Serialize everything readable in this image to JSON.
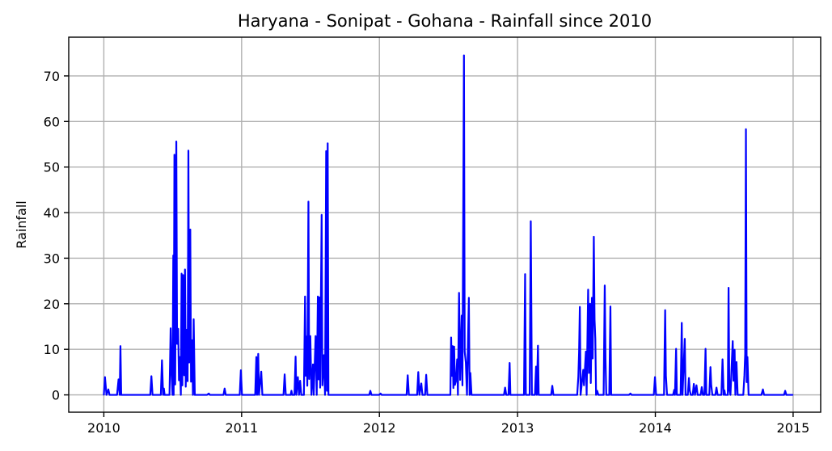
{
  "chart_data": {
    "type": "line",
    "title": "Haryana - Sonipat - Gohana - Rainfall since 2010",
    "xlabel": "",
    "ylabel": "Rainfall",
    "xlim": [
      "2009-09-30",
      "2015-03-15"
    ],
    "ylim": [
      -3.8,
      78.5
    ],
    "grid": true,
    "x_ticks": [
      {
        "date": "2010-01-01",
        "label": "2010"
      },
      {
        "date": "2011-01-01",
        "label": "2011"
      },
      {
        "date": "2012-01-01",
        "label": "2012"
      },
      {
        "date": "2013-01-01",
        "label": "2013"
      },
      {
        "date": "2014-01-01",
        "label": "2014"
      },
      {
        "date": "2015-01-01",
        "label": "2015"
      }
    ],
    "y_ticks": [
      0,
      10,
      20,
      30,
      40,
      50,
      60,
      70
    ],
    "series": [
      {
        "color": "#0000ff",
        "points": [
          [
            "2010-01-01",
            0
          ],
          [
            "2010-01-04",
            3.9
          ],
          [
            "2010-01-08",
            0
          ],
          [
            "2010-01-13",
            1.2
          ],
          [
            "2010-01-16",
            0
          ],
          [
            "2010-02-05",
            0
          ],
          [
            "2010-02-09",
            3.4
          ],
          [
            "2010-02-12",
            0
          ],
          [
            "2010-02-14",
            10.7
          ],
          [
            "2010-02-16",
            0
          ],
          [
            "2010-05-04",
            0
          ],
          [
            "2010-05-07",
            4.1
          ],
          [
            "2010-05-10",
            0
          ],
          [
            "2010-06-01",
            0
          ],
          [
            "2010-06-04",
            7.6
          ],
          [
            "2010-06-07",
            0
          ],
          [
            "2010-06-09",
            1.4
          ],
          [
            "2010-06-11",
            0
          ],
          [
            "2010-06-24",
            0
          ],
          [
            "2010-06-27",
            14.6
          ],
          [
            "2010-06-29",
            5.4
          ],
          [
            "2010-07-02",
            0
          ],
          [
            "2010-07-04",
            30.6
          ],
          [
            "2010-07-05",
            0
          ],
          [
            "2010-07-07",
            52.7
          ],
          [
            "2010-07-09",
            2.3
          ],
          [
            "2010-07-12",
            55.6
          ],
          [
            "2010-07-14",
            11.2
          ],
          [
            "2010-07-17",
            14.5
          ],
          [
            "2010-07-19",
            3.2
          ],
          [
            "2010-07-21",
            8.3
          ],
          [
            "2010-07-24",
            0
          ],
          [
            "2010-07-26",
            26.6
          ],
          [
            "2010-07-28",
            2.1
          ],
          [
            "2010-07-30",
            26.3
          ],
          [
            "2010-08-02",
            4.3
          ],
          [
            "2010-08-04",
            27.5
          ],
          [
            "2010-08-06",
            1.8
          ],
          [
            "2010-08-09",
            14.3
          ],
          [
            "2010-08-11",
            3.0
          ],
          [
            "2010-08-13",
            53.6
          ],
          [
            "2010-08-15",
            7.1
          ],
          [
            "2010-08-18",
            36.3
          ],
          [
            "2010-08-20",
            2.9
          ],
          [
            "2010-08-23",
            12.0
          ],
          [
            "2010-08-25",
            0
          ],
          [
            "2010-08-27",
            16.6
          ],
          [
            "2010-08-30",
            0
          ],
          [
            "2010-10-01",
            0
          ],
          [
            "2010-10-06",
            0.3
          ],
          [
            "2010-10-09",
            0
          ],
          [
            "2010-11-14",
            0
          ],
          [
            "2010-11-17",
            1.4
          ],
          [
            "2010-11-20",
            0
          ],
          [
            "2010-12-27",
            0
          ],
          [
            "2010-12-30",
            5.4
          ],
          [
            "2011-01-02",
            0
          ],
          [
            "2011-02-06",
            0
          ],
          [
            "2011-02-09",
            8.3
          ],
          [
            "2011-02-11",
            0
          ],
          [
            "2011-02-14",
            9.0
          ],
          [
            "2011-02-16",
            0
          ],
          [
            "2011-02-22",
            5.1
          ],
          [
            "2011-02-25",
            0
          ],
          [
            "2011-04-22",
            0
          ],
          [
            "2011-04-25",
            4.5
          ],
          [
            "2011-04-28",
            0
          ],
          [
            "2011-05-11",
            0
          ],
          [
            "2011-05-13",
            0.9
          ],
          [
            "2011-05-15",
            0
          ],
          [
            "2011-05-21",
            0
          ],
          [
            "2011-05-24",
            8.4
          ],
          [
            "2011-05-26",
            0
          ],
          [
            "2011-05-30",
            3.9
          ],
          [
            "2011-06-02",
            0
          ],
          [
            "2011-06-05",
            3.1
          ],
          [
            "2011-06-08",
            0
          ],
          [
            "2011-06-15",
            0
          ],
          [
            "2011-06-18",
            21.6
          ],
          [
            "2011-06-20",
            4.2
          ],
          [
            "2011-06-22",
            12.8
          ],
          [
            "2011-06-24",
            2.0
          ],
          [
            "2011-06-27",
            42.4
          ],
          [
            "2011-06-29",
            3.5
          ],
          [
            "2011-07-02",
            12.9
          ],
          [
            "2011-07-05",
            0
          ],
          [
            "2011-07-09",
            6.7
          ],
          [
            "2011-07-11",
            0
          ],
          [
            "2011-07-16",
            12.9
          ],
          [
            "2011-07-19",
            0
          ],
          [
            "2011-07-22",
            21.6
          ],
          [
            "2011-07-24",
            3.4
          ],
          [
            "2011-07-26",
            21.4
          ],
          [
            "2011-07-28",
            1.6
          ],
          [
            "2011-08-01",
            39.5
          ],
          [
            "2011-08-03",
            2.1
          ],
          [
            "2011-08-07",
            8.7
          ],
          [
            "2011-08-10",
            0
          ],
          [
            "2011-08-13",
            53.5
          ],
          [
            "2011-08-15",
            0.9
          ],
          [
            "2011-08-17",
            55.2
          ],
          [
            "2011-08-19",
            0
          ],
          [
            "2011-12-05",
            0
          ],
          [
            "2011-12-08",
            0.9
          ],
          [
            "2011-12-11",
            0
          ],
          [
            "2011-12-31",
            0
          ],
          [
            "2012-01-04",
            0.3
          ],
          [
            "2012-01-07",
            0
          ],
          [
            "2012-03-13",
            0
          ],
          [
            "2012-03-16",
            4.3
          ],
          [
            "2012-03-19",
            0
          ],
          [
            "2012-04-10",
            0
          ],
          [
            "2012-04-13",
            5.0
          ],
          [
            "2012-04-16",
            0
          ],
          [
            "2012-04-21",
            2.5
          ],
          [
            "2012-04-24",
            0
          ],
          [
            "2012-05-01",
            0
          ],
          [
            "2012-05-04",
            4.4
          ],
          [
            "2012-05-07",
            0
          ],
          [
            "2012-07-07",
            0
          ],
          [
            "2012-07-09",
            12.6
          ],
          [
            "2012-07-11",
            4.2
          ],
          [
            "2012-07-13",
            10.7
          ],
          [
            "2012-07-15",
            1.5
          ],
          [
            "2012-07-17",
            10.6
          ],
          [
            "2012-07-19",
            2.2
          ],
          [
            "2012-07-22",
            3.1
          ],
          [
            "2012-07-25",
            7.8
          ],
          [
            "2012-07-27",
            0
          ],
          [
            "2012-07-30",
            22.4
          ],
          [
            "2012-08-02",
            3.3
          ],
          [
            "2012-08-06",
            17.4
          ],
          [
            "2012-08-08",
            2.1
          ],
          [
            "2012-08-12",
            74.5
          ],
          [
            "2012-08-14",
            9.5
          ],
          [
            "2012-08-17",
            7.1
          ],
          [
            "2012-08-20",
            0
          ],
          [
            "2012-08-25",
            21.3
          ],
          [
            "2012-08-27",
            0
          ],
          [
            "2012-08-29",
            4.8
          ],
          [
            "2012-09-01",
            0
          ],
          [
            "2012-11-26",
            0
          ],
          [
            "2012-11-29",
            1.6
          ],
          [
            "2012-12-02",
            0
          ],
          [
            "2012-12-08",
            0
          ],
          [
            "2012-12-11",
            7.0
          ],
          [
            "2012-12-13",
            0
          ],
          [
            "2013-01-18",
            0
          ],
          [
            "2013-01-21",
            26.5
          ],
          [
            "2013-01-23",
            0
          ],
          [
            "2013-02-02",
            0
          ],
          [
            "2013-02-05",
            38.1
          ],
          [
            "2013-02-08",
            0
          ],
          [
            "2013-02-16",
            0
          ],
          [
            "2013-02-19",
            6.2
          ],
          [
            "2013-02-21",
            0
          ],
          [
            "2013-02-24",
            10.8
          ],
          [
            "2013-02-26",
            0
          ],
          [
            "2013-03-31",
            0
          ],
          [
            "2013-04-03",
            2.0
          ],
          [
            "2013-04-06",
            0
          ],
          [
            "2013-06-08",
            0
          ],
          [
            "2013-06-11",
            4.0
          ],
          [
            "2013-06-13",
            9.4
          ],
          [
            "2013-06-15",
            19.3
          ],
          [
            "2013-06-17",
            0
          ],
          [
            "2013-06-24",
            5.5
          ],
          [
            "2013-06-26",
            2.1
          ],
          [
            "2013-07-01",
            9.5
          ],
          [
            "2013-07-03",
            0
          ],
          [
            "2013-07-07",
            23.1
          ],
          [
            "2013-07-09",
            4.8
          ],
          [
            "2013-07-12",
            20.0
          ],
          [
            "2013-07-14",
            2.6
          ],
          [
            "2013-07-17",
            21.3
          ],
          [
            "2013-07-19",
            8.0
          ],
          [
            "2013-07-22",
            34.7
          ],
          [
            "2013-07-24",
            16.5
          ],
          [
            "2013-07-26",
            12.3
          ],
          [
            "2013-07-28",
            0
          ],
          [
            "2013-07-31",
            0.9
          ],
          [
            "2013-08-03",
            0
          ],
          [
            "2013-08-17",
            0
          ],
          [
            "2013-08-20",
            24.0
          ],
          [
            "2013-08-22",
            7.8
          ],
          [
            "2013-08-24",
            0
          ],
          [
            "2013-09-01",
            0
          ],
          [
            "2013-09-04",
            19.4
          ],
          [
            "2013-09-06",
            0
          ],
          [
            "2013-10-23",
            0
          ],
          [
            "2013-10-27",
            0.3
          ],
          [
            "2013-10-30",
            0
          ],
          [
            "2013-12-28",
            0
          ],
          [
            "2013-12-31",
            3.9
          ],
          [
            "2014-01-03",
            0
          ],
          [
            "2014-01-24",
            0
          ],
          [
            "2014-01-27",
            18.6
          ],
          [
            "2014-01-29",
            4.2
          ],
          [
            "2014-02-01",
            0
          ],
          [
            "2014-02-17",
            0
          ],
          [
            "2014-02-20",
            1.1
          ],
          [
            "2014-02-22",
            0
          ],
          [
            "2014-02-25",
            10.1
          ],
          [
            "2014-02-27",
            0
          ],
          [
            "2014-03-09",
            0
          ],
          [
            "2014-03-12",
            15.8
          ],
          [
            "2014-03-14",
            0
          ],
          [
            "2014-03-20",
            12.3
          ],
          [
            "2014-03-22",
            0
          ],
          [
            "2014-03-28",
            0
          ],
          [
            "2014-03-31",
            3.7
          ],
          [
            "2014-04-02",
            1.0
          ],
          [
            "2014-04-05",
            0
          ],
          [
            "2014-04-10",
            0
          ],
          [
            "2014-04-13",
            2.4
          ],
          [
            "2014-04-16",
            0
          ],
          [
            "2014-04-20",
            2.1
          ],
          [
            "2014-04-23",
            0
          ],
          [
            "2014-05-01",
            0
          ],
          [
            "2014-05-04",
            1.7
          ],
          [
            "2014-05-07",
            0
          ],
          [
            "2014-05-11",
            0
          ],
          [
            "2014-05-14",
            10.1
          ],
          [
            "2014-05-16",
            0
          ],
          [
            "2014-05-24",
            0
          ],
          [
            "2014-05-27",
            6.1
          ],
          [
            "2014-05-29",
            2.2
          ],
          [
            "2014-06-01",
            0
          ],
          [
            "2014-06-09",
            0
          ],
          [
            "2014-06-12",
            1.6
          ],
          [
            "2014-06-15",
            0
          ],
          [
            "2014-06-25",
            0
          ],
          [
            "2014-06-28",
            7.8
          ],
          [
            "2014-07-01",
            0
          ],
          [
            "2014-07-03",
            1.0
          ],
          [
            "2014-07-05",
            0
          ],
          [
            "2014-07-12",
            0
          ],
          [
            "2014-07-14",
            23.5
          ],
          [
            "2014-07-16",
            1.2
          ],
          [
            "2014-07-19",
            0
          ],
          [
            "2014-07-25",
            11.8
          ],
          [
            "2014-07-27",
            3.1
          ],
          [
            "2014-07-30",
            9.9
          ],
          [
            "2014-08-01",
            0
          ],
          [
            "2014-08-04",
            7.2
          ],
          [
            "2014-08-07",
            0
          ],
          [
            "2014-08-22",
            0
          ],
          [
            "2014-08-25",
            4.3
          ],
          [
            "2014-08-27",
            9.0
          ],
          [
            "2014-08-29",
            58.3
          ],
          [
            "2014-08-31",
            2.8
          ],
          [
            "2014-09-02",
            8.3
          ],
          [
            "2014-09-05",
            0
          ],
          [
            "2014-10-09",
            0
          ],
          [
            "2014-10-13",
            1.2
          ],
          [
            "2014-10-16",
            0
          ],
          [
            "2014-12-08",
            0
          ],
          [
            "2014-12-11",
            0.9
          ],
          [
            "2014-12-14",
            0
          ],
          [
            "2014-12-31",
            0
          ]
        ]
      }
    ]
  }
}
